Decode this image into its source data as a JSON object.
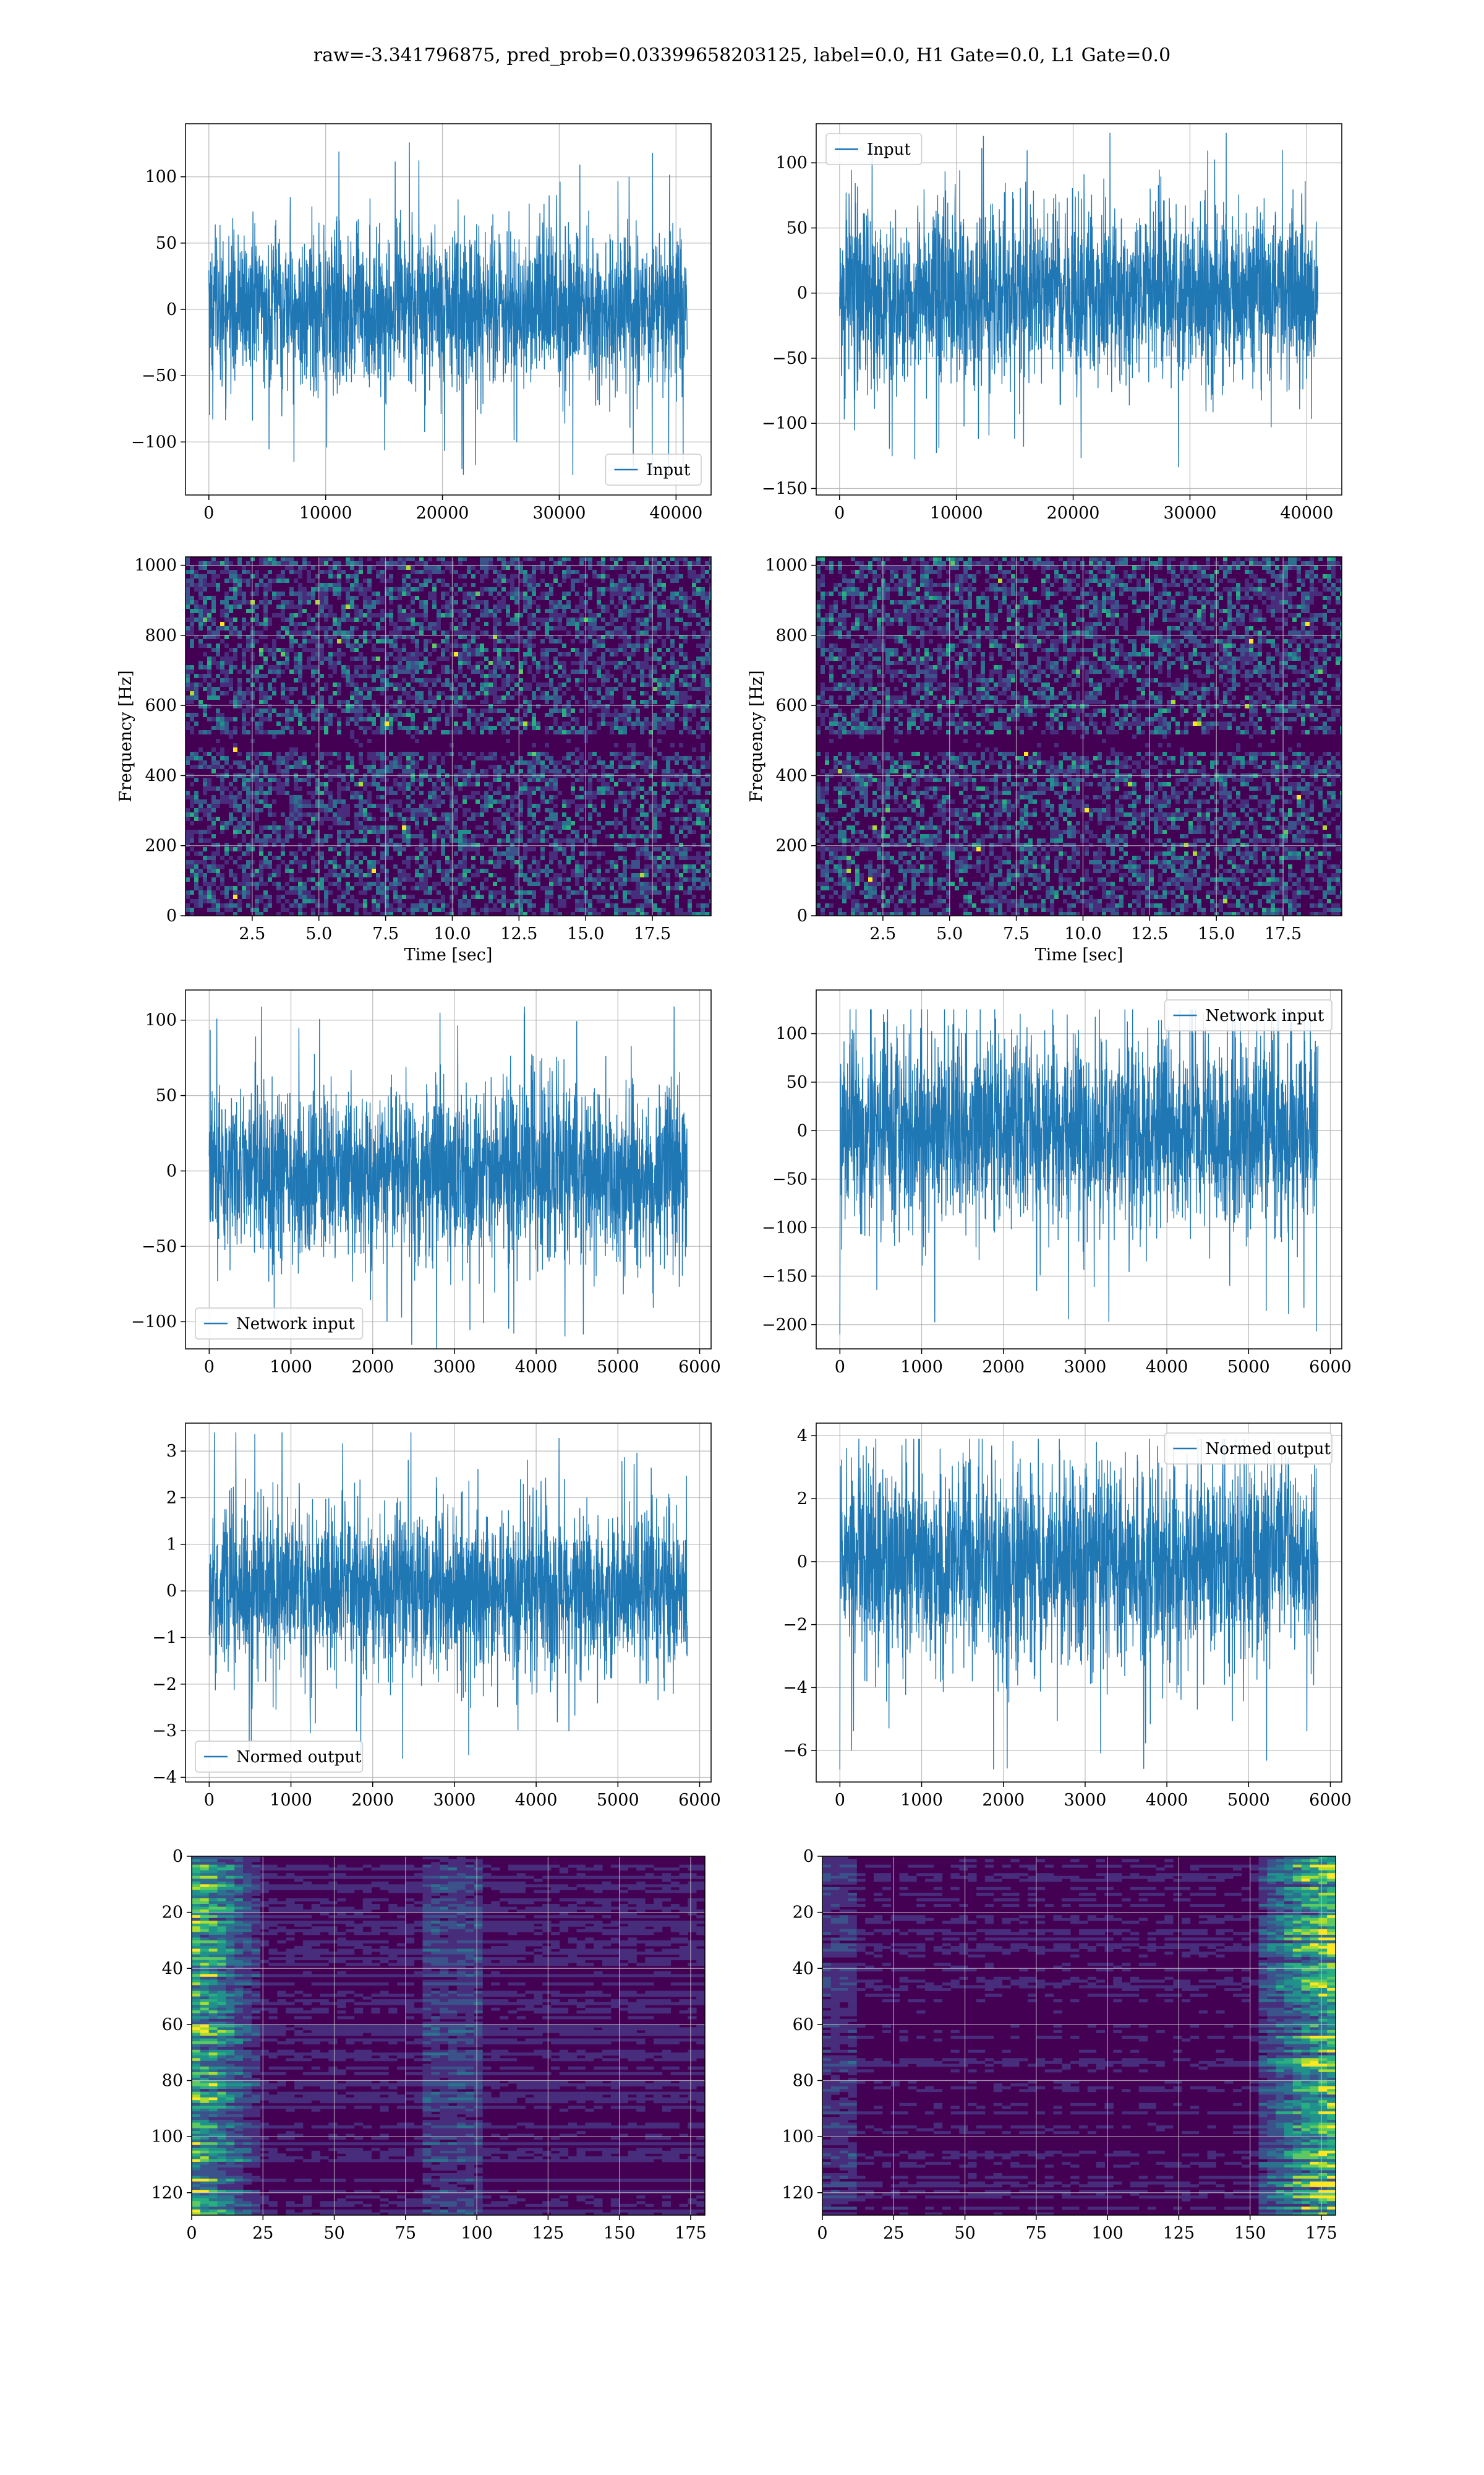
{
  "figure": {
    "suptitle": "raw=-3.341796875, pred_prob=0.03399658203125, label=0.0, H1 Gate=0.0, L1 Gate=0.0"
  },
  "colors": {
    "line": "#1f77b4",
    "grid": "#b0b0b0",
    "spine": "#000000",
    "viridis": [
      "#440154",
      "#472d7b",
      "#3b528b",
      "#2c728e",
      "#21918c",
      "#28ae80",
      "#5ec962",
      "#addc30",
      "#fde725"
    ]
  },
  "chart_data": [
    {
      "id": "h1-input",
      "type": "line",
      "series": [
        {
          "name": "Input",
          "n": 40960,
          "y_range": [
            -125,
            128
          ]
        }
      ],
      "xlim": [
        -2000,
        43000
      ],
      "ylim": [
        -140,
        140
      ],
      "xticks": [
        0,
        10000,
        20000,
        30000,
        40000
      ],
      "yticks": [
        -100,
        -50,
        0,
        50,
        100
      ],
      "legend": "lower-right",
      "grid": true,
      "xlabel": "",
      "ylabel": ""
    },
    {
      "id": "l1-input",
      "type": "line",
      "series": [
        {
          "name": "Input",
          "n": 40960,
          "y_range": [
            -142,
            123
          ]
        }
      ],
      "xlim": [
        -2000,
        43000
      ],
      "ylim": [
        -155,
        130
      ],
      "xticks": [
        0,
        10000,
        20000,
        30000,
        40000
      ],
      "yticks": [
        -150,
        -100,
        -50,
        0,
        50,
        100
      ],
      "legend": "upper-left",
      "grid": true,
      "xlabel": "",
      "ylabel": ""
    },
    {
      "id": "h1-spectrogram",
      "type": "heatmap",
      "colormap": "viridis",
      "xlim": [
        0,
        19.7
      ],
      "ylim": [
        0,
        1024
      ],
      "xticks": [
        2.5,
        5.0,
        7.5,
        10.0,
        12.5,
        15.0,
        17.5
      ],
      "yticks": [
        0,
        200,
        400,
        600,
        800,
        1000
      ],
      "xlabel": "Time [sec]",
      "ylabel": "Frequency [Hz]",
      "grid": true,
      "features": [
        {
          "freq_hz": 500,
          "note": "dark horizontal band"
        },
        {
          "freq_hz": 840,
          "note": "faint bright line"
        }
      ]
    },
    {
      "id": "l1-spectrogram",
      "type": "heatmap",
      "colormap": "viridis",
      "xlim": [
        0,
        19.7
      ],
      "ylim": [
        0,
        1024
      ],
      "xticks": [
        2.5,
        5.0,
        7.5,
        10.0,
        12.5,
        15.0,
        17.5
      ],
      "yticks": [
        0,
        200,
        400,
        600,
        800,
        1000
      ],
      "xlabel": "Time [sec]",
      "ylabel": "Frequency [Hz]",
      "grid": true,
      "features": [
        {
          "freq_hz": 500,
          "note": "dark horizontal band"
        }
      ]
    },
    {
      "id": "h1-network-input",
      "type": "line",
      "series": [
        {
          "name": "Network input",
          "n": 5850,
          "y_range": [
            -121,
            109
          ]
        }
      ],
      "xlim": [
        -290,
        6140
      ],
      "ylim": [
        -118,
        120
      ],
      "xticks": [
        0,
        1000,
        2000,
        3000,
        4000,
        5000,
        6000
      ],
      "yticks": [
        -100,
        -50,
        0,
        50,
        100
      ],
      "legend": "lower-left",
      "grid": true,
      "xlabel": "",
      "ylabel": ""
    },
    {
      "id": "l1-network-input",
      "type": "line",
      "series": [
        {
          "name": "Network input",
          "n": 5850,
          "y_range": [
            -210,
            125
          ]
        }
      ],
      "xlim": [
        -290,
        6140
      ],
      "ylim": [
        -225,
        145
      ],
      "xticks": [
        0,
        1000,
        2000,
        3000,
        4000,
        5000,
        6000
      ],
      "yticks": [
        -200,
        -150,
        -100,
        -50,
        0,
        50,
        100
      ],
      "legend": "upper-right",
      "grid": true,
      "xlabel": "",
      "ylabel": ""
    },
    {
      "id": "h1-normed-output",
      "type": "line",
      "series": [
        {
          "name": "Normed output",
          "n": 5850,
          "y_range": [
            -3.7,
            3.4
          ]
        }
      ],
      "xlim": [
        -290,
        6140
      ],
      "ylim": [
        -4.1,
        3.6
      ],
      "xticks": [
        0,
        1000,
        2000,
        3000,
        4000,
        5000,
        6000
      ],
      "yticks": [
        -4,
        -3,
        -2,
        -1,
        0,
        1,
        2,
        3
      ],
      "legend": "lower-left",
      "grid": true,
      "xlabel": "",
      "ylabel": ""
    },
    {
      "id": "l1-normed-output",
      "type": "line",
      "series": [
        {
          "name": "Normed output",
          "n": 5850,
          "y_range": [
            -6.6,
            3.9
          ]
        }
      ],
      "xlim": [
        -290,
        6140
      ],
      "ylim": [
        -7.0,
        4.4
      ],
      "xticks": [
        0,
        1000,
        2000,
        3000,
        4000,
        5000,
        6000
      ],
      "yticks": [
        -6,
        -4,
        -2,
        0,
        2,
        4
      ],
      "legend": "upper-right",
      "grid": true,
      "xlabel": "",
      "ylabel": ""
    },
    {
      "id": "h1-feature-map",
      "type": "heatmap",
      "colormap": "viridis",
      "shape": [
        128,
        180
      ],
      "xlim": [
        0,
        180
      ],
      "ylim": [
        128,
        0
      ],
      "xticks": [
        0,
        25,
        50,
        75,
        100,
        125,
        150,
        175
      ],
      "yticks": [
        0,
        20,
        40,
        60,
        80,
        100,
        120
      ],
      "grid": true,
      "xlabel": "",
      "ylabel": "",
      "features": [
        {
          "x_range": [
            0,
            25
          ],
          "note": "bright columns on left edge"
        }
      ]
    },
    {
      "id": "l1-feature-map",
      "type": "heatmap",
      "colormap": "viridis",
      "shape": [
        128,
        180
      ],
      "xlim": [
        0,
        180
      ],
      "ylim": [
        128,
        0
      ],
      "xticks": [
        0,
        25,
        50,
        75,
        100,
        125,
        150,
        175
      ],
      "yticks": [
        0,
        20,
        40,
        60,
        80,
        100,
        120
      ],
      "grid": true,
      "xlabel": "",
      "ylabel": "",
      "features": [
        {
          "x_range": [
            150,
            180
          ],
          "note": "bright columns on right edge"
        }
      ]
    }
  ]
}
